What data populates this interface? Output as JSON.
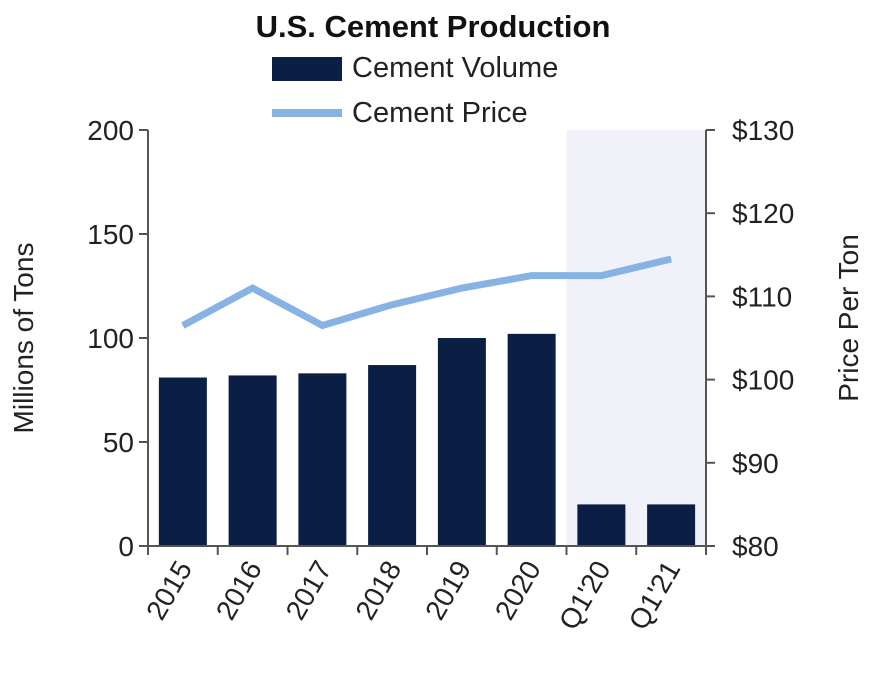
{
  "chart_data": {
    "type": "bar",
    "title": "U.S. Cement Production",
    "categories": [
      "2015",
      "2016",
      "2017",
      "2018",
      "2019",
      "2020",
      "Q1'20",
      "Q1'21"
    ],
    "series": [
      {
        "name": "Cement Volume",
        "type": "bar",
        "axis": "left",
        "color": "#0b1f45",
        "values": [
          81,
          82,
          83,
          87,
          100,
          102,
          20,
          20
        ]
      },
      {
        "name": "Cement Price",
        "type": "line",
        "axis": "right",
        "color": "#86b3e4",
        "values": [
          106.5,
          111,
          106.5,
          109,
          111,
          112.5,
          112.5,
          114.5
        ]
      }
    ],
    "ylabel": "Millions of Tons",
    "y2label": "Price Per Ton",
    "ylim": [
      0,
      200
    ],
    "y2lim": [
      80,
      130
    ],
    "yticks": [
      "0",
      "50",
      "100",
      "150",
      "200"
    ],
    "y2ticks": [
      "$80",
      "$90",
      "$100",
      "$110",
      "$120",
      "$130"
    ],
    "legend_position": "top",
    "highlight_band_categories": [
      "Q1'20",
      "Q1'21"
    ],
    "highlight_band_color": "#f1f1f9",
    "grid": false
  }
}
